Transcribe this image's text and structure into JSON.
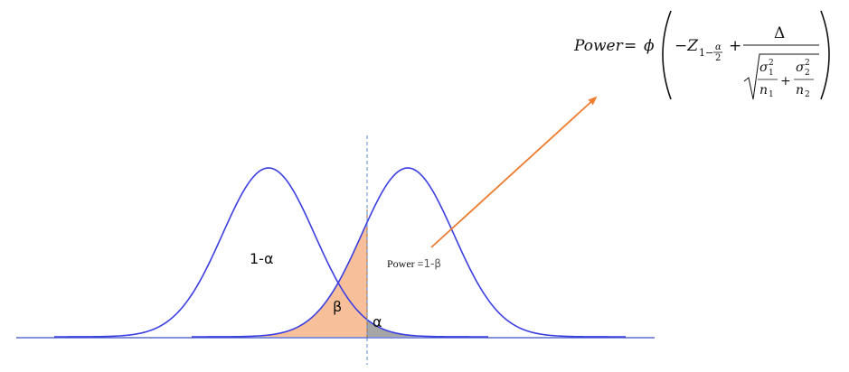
{
  "labels": {
    "one_minus_alpha": "1-α",
    "beta": "β",
    "alpha": "α",
    "power_prefix": "Power =",
    "power_value": "1-β"
  },
  "formula": {
    "lhs": "Power",
    "equals": "=",
    "phi": "ϕ",
    "minus_z": "−Z",
    "z_sub_prefix": "1−",
    "z_sub_num": "α",
    "z_sub_den": "2",
    "plus": "+",
    "delta": "Δ",
    "sigma1": "σ",
    "sigma1_sub": "1",
    "sigma1_sup": "2",
    "n1": "n",
    "n1_sub": "1",
    "sigma2": "σ",
    "sigma2_sub": "2",
    "sigma2_sup": "2",
    "n2": "n",
    "n2_sub": "2"
  },
  "colors": {
    "curve": "#3b3fe0",
    "baseline": "#3b50c8",
    "beta_fill": "#f7bf9a",
    "alpha_fill": "#a6a6a6",
    "arrow": "#ed7d31",
    "critical_line": "#5b8bd0"
  }
}
